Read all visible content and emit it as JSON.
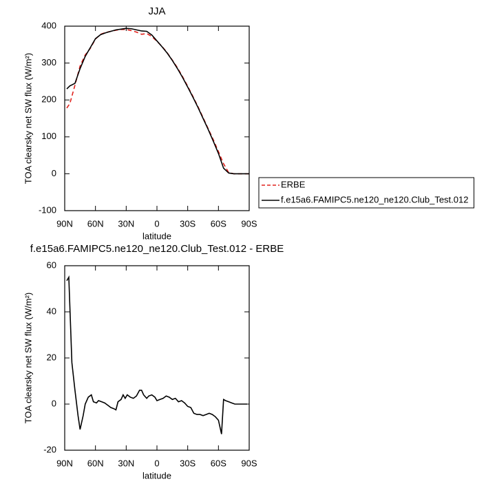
{
  "chart_data": [
    {
      "type": "line",
      "title": "JJA",
      "x_label": "latitude",
      "y_label": "TOA clearsky net SW flux (W/m²)",
      "xlim": [
        90,
        -90
      ],
      "ylim": [
        -100,
        400
      ],
      "xticks": [
        {
          "value": 90,
          "label": "90N"
        },
        {
          "value": 60,
          "label": "60N"
        },
        {
          "value": 30,
          "label": "30N"
        },
        0,
        {
          "value": -30,
          "label": "30S"
        },
        {
          "value": -60,
          "label": "60S"
        },
        {
          "value": -90,
          "label": "90S"
        }
      ],
      "yticks": [
        -100,
        0,
        100,
        200,
        300,
        400
      ],
      "legend": "outside-right",
      "x": [
        88,
        85,
        80,
        75,
        70,
        65,
        60,
        55,
        50,
        45,
        40,
        35,
        30,
        25,
        20,
        15,
        10,
        5,
        0,
        -5,
        -10,
        -15,
        -20,
        -25,
        -30,
        -35,
        -40,
        -45,
        -50,
        -55,
        -60,
        -65,
        -70,
        -75,
        -80,
        -85,
        -90
      ],
      "series": [
        {
          "name": "ERBE",
          "color": "#e0201b",
          "line_style": "dashed",
          "values": [
            178,
            190,
            240,
            292,
            322,
            340,
            365,
            378,
            383,
            386,
            389,
            391,
            391,
            388,
            384,
            378,
            380,
            372,
            359,
            345,
            328,
            308,
            287,
            263,
            237,
            210,
            182,
            152,
            122,
            92,
            60,
            27,
            3,
            0,
            0,
            0,
            0
          ]
        },
        {
          "name": "f.e15a6.FAMIPC5.ne120_ne120.Club_Test.012",
          "color": "#000000",
          "line_style": "solid",
          "values": [
            230,
            238,
            245,
            285,
            318,
            342,
            366,
            377,
            382,
            386,
            390,
            392,
            394,
            393,
            390,
            387,
            386,
            376,
            360,
            344,
            327,
            307,
            285,
            261,
            235,
            208,
            180,
            150,
            120,
            88,
            55,
            15,
            2,
            0,
            0,
            0,
            0
          ]
        }
      ]
    },
    {
      "type": "line",
      "title": "f.e15a6.FAMIPC5.ne120_ne120.Club_Test.012 - ERBE",
      "x_label": "latitude",
      "y_label": "TOA clearsky net SW flux (W/m²)",
      "xlim": [
        90,
        -90
      ],
      "ylim": [
        -20,
        60
      ],
      "xticks": [
        {
          "value": 90,
          "label": "90N"
        },
        {
          "value": 60,
          "label": "60N"
        },
        {
          "value": 30,
          "label": "30N"
        },
        0,
        {
          "value": -30,
          "label": "30S"
        },
        {
          "value": -60,
          "label": "60S"
        },
        {
          "value": -90,
          "label": "90S"
        }
      ],
      "yticks": [
        -20,
        0,
        20,
        40,
        60
      ],
      "x": [
        88,
        86,
        83,
        80,
        77,
        75,
        72,
        70,
        67,
        64,
        62,
        59,
        57,
        54,
        51,
        48,
        45,
        42,
        40,
        38,
        35,
        33,
        31,
        29,
        26,
        23,
        20,
        17,
        15,
        13,
        10,
        8,
        5,
        2,
        0,
        -3,
        -6,
        -9,
        -12,
        -15,
        -18,
        -21,
        -24,
        -27,
        -30,
        -33,
        -36,
        -39,
        -42,
        -45,
        -48,
        -51,
        -54,
        -57,
        -60,
        -63,
        -65,
        -67,
        -70,
        -73,
        -76,
        -79,
        -82,
        -85,
        -88
      ],
      "series": [
        {
          "color": "#000000",
          "line_style": "solid",
          "values": [
            53.5,
            55,
            18,
            6,
            -5,
            -11,
            -5,
            0,
            3,
            4,
            1,
            0.5,
            1.5,
            1,
            0.5,
            -0.5,
            -1.5,
            -2,
            -2.5,
            1,
            2,
            4,
            2.5,
            4,
            3,
            2.5,
            3.5,
            6,
            6,
            4,
            2.5,
            3.5,
            4,
            3,
            1.5,
            2,
            2.5,
            3.5,
            3,
            2,
            2.5,
            1,
            1.5,
            0.5,
            -1,
            -1.5,
            -4,
            -4.5,
            -4.5,
            -5,
            -4.5,
            -4,
            -4.5,
            -5.5,
            -7,
            -13,
            2,
            1.5,
            1,
            0.5,
            0,
            0,
            0,
            0,
            0
          ]
        }
      ]
    }
  ]
}
